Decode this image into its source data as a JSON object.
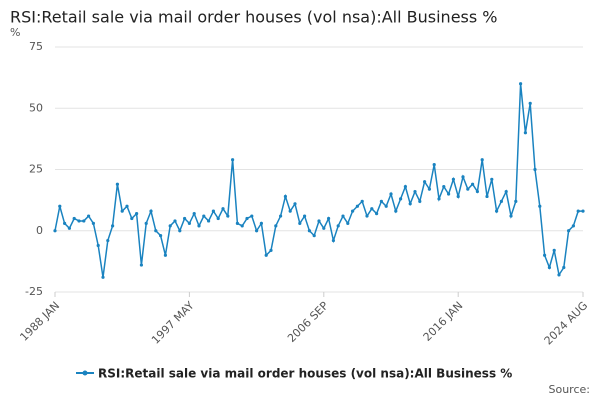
{
  "chart_data": {
    "type": "line",
    "title": "RSI:Retail sale via mail order houses (vol nsa):All Business %",
    "y_unit": "%",
    "source": "Source:",
    "categories": [
      "1988 JAN",
      "1988 MAY",
      "1988 SEP",
      "1989 JAN",
      "1989 MAY",
      "1989 SEP",
      "1990 JAN",
      "1990 MAY",
      "1990 SEP",
      "1991 JAN",
      "1991 MAY",
      "1991 SEP",
      "1992 JAN",
      "1992 MAY",
      "1992 SEP",
      "1993 JAN",
      "1993 MAY",
      "1993 SEP",
      "1994 JAN",
      "1994 MAY",
      "1994 SEP",
      "1995 JAN",
      "1995 MAY",
      "1995 SEP",
      "1996 JAN",
      "1996 MAY",
      "1996 SEP",
      "1997 JAN",
      "1997 MAY",
      "1997 SEP",
      "1998 JAN",
      "1998 MAY",
      "1998 SEP",
      "1999 JAN",
      "1999 MAY",
      "1999 SEP",
      "2000 JAN",
      "2000 MAY",
      "2000 SEP",
      "2001 JAN",
      "2001 MAY",
      "2001 SEP",
      "2002 JAN",
      "2002 MAY",
      "2002 SEP",
      "2003 JAN",
      "2003 MAY",
      "2003 SEP",
      "2004 JAN",
      "2004 MAY",
      "2004 SEP",
      "2005 JAN",
      "2005 MAY",
      "2005 SEP",
      "2006 JAN",
      "2006 MAY",
      "2006 SEP",
      "2007 JAN",
      "2007 MAY",
      "2007 SEP",
      "2008 JAN",
      "2008 MAY",
      "2008 SEP",
      "2009 JAN",
      "2009 MAY",
      "2009 SEP",
      "2010 JAN",
      "2010 MAY",
      "2010 SEP",
      "2011 JAN",
      "2011 MAY",
      "2011 SEP",
      "2012 JAN",
      "2012 MAY",
      "2012 SEP",
      "2013 JAN",
      "2013 MAY",
      "2013 SEP",
      "2014 JAN",
      "2014 MAY",
      "2014 SEP",
      "2015 JAN",
      "2015 MAY",
      "2015 SEP",
      "2016 JAN",
      "2016 MAY",
      "2016 SEP",
      "2017 JAN",
      "2017 MAY",
      "2017 SEP",
      "2018 JAN",
      "2018 MAY",
      "2018 SEP",
      "2019 JAN",
      "2019 MAY",
      "2019 SEP",
      "2020 JAN",
      "2020 MAY",
      "2020 SEP",
      "2021 JAN",
      "2021 MAY",
      "2021 SEP",
      "2022 JAN",
      "2022 MAY",
      "2022 SEP",
      "2023 JAN",
      "2023 MAY",
      "2023 SEP",
      "2024 JAN",
      "2024 MAY",
      "2024 AUG"
    ],
    "series": [
      {
        "name": "RSI:Retail sale via mail order houses (vol nsa):All Business %",
        "color": "#1a83c0",
        "values": [
          0,
          10,
          3,
          1,
          5,
          4,
          4,
          6,
          3,
          -6,
          -19,
          -4,
          2,
          19,
          8,
          10,
          5,
          7,
          -14,
          3,
          8,
          0,
          -2,
          -10,
          2,
          4,
          0,
          5,
          3,
          7,
          2,
          6,
          4,
          8,
          5,
          9,
          6,
          29,
          3,
          2,
          5,
          6,
          0,
          3,
          -10,
          -8,
          2,
          6,
          14,
          8,
          11,
          3,
          6,
          0,
          -2,
          4,
          1,
          5,
          -4,
          2,
          6,
          3,
          8,
          10,
          12,
          6,
          9,
          7,
          12,
          10,
          15,
          8,
          13,
          18,
          11,
          16,
          12,
          20,
          17,
          27,
          13,
          18,
          15,
          21,
          14,
          22,
          17,
          19,
          16,
          29,
          14,
          21,
          8,
          12,
          16,
          6,
          12,
          60,
          40,
          52,
          25,
          10,
          -10,
          -15,
          -8,
          -18,
          -15,
          0,
          2,
          8,
          8
        ]
      }
    ],
    "xticks": [
      "1988 JAN",
      "1997 MAY",
      "2006 SEP",
      "2016 JAN",
      "2024 AUG"
    ],
    "ylim": [
      -25,
      75
    ],
    "yticks": [
      -25,
      0,
      25,
      50,
      75
    ],
    "grid": true
  }
}
